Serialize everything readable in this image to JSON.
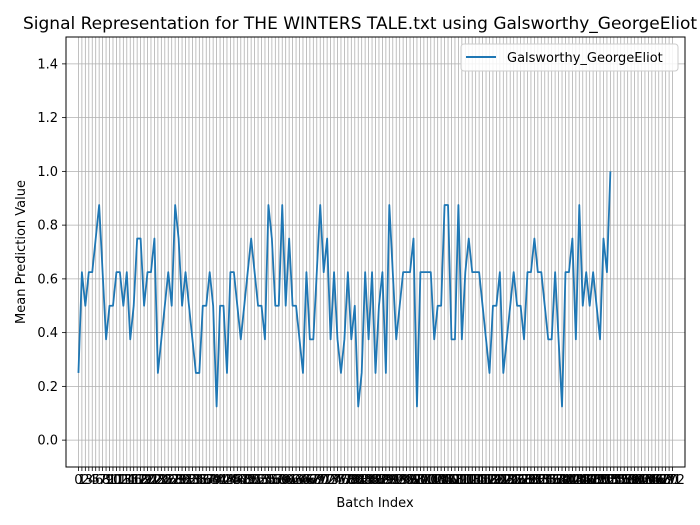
{
  "chart_data": {
    "type": "line",
    "title": "Signal Representation for THE WINTERS TALE.txt using Galsworthy_GeorgeEliot",
    "xlabel": "Batch Index",
    "ylabel": "Mean Prediction Value",
    "ylim": [
      -0.1,
      1.5
    ],
    "yticks": [
      "0.0",
      "0.2",
      "0.4",
      "0.6",
      "0.8",
      "1.0",
      "1.2",
      "1.4"
    ],
    "xlim": [
      -3.6,
      175.6
    ],
    "x_tick_first": 0,
    "x_tick_last": 172,
    "grid": true,
    "legend_position": "upper right",
    "color": "#1f77b4",
    "series": [
      {
        "name": "Galsworthy_GeorgeEliot",
        "values": [
          0.25,
          0.625,
          0.5,
          0.625,
          0.625,
          0.75,
          0.875,
          0.625,
          0.375,
          0.5,
          0.5,
          0.625,
          0.625,
          0.5,
          0.625,
          0.375,
          0.5,
          0.75,
          0.75,
          0.5,
          0.625,
          0.625,
          0.75,
          0.25,
          0.375,
          0.5,
          0.625,
          0.5,
          0.875,
          0.75,
          0.5,
          0.625,
          0.5,
          0.375,
          0.25,
          0.25,
          0.5,
          0.5,
          0.625,
          0.5,
          0.125,
          0.5,
          0.5,
          0.25,
          0.625,
          0.625,
          0.5,
          0.375,
          0.5,
          0.625,
          0.75,
          0.625,
          0.5,
          0.5,
          0.375,
          0.875,
          0.75,
          0.5,
          0.5,
          0.875,
          0.5,
          0.75,
          0.5,
          0.5,
          0.375,
          0.25,
          0.625,
          0.375,
          0.375,
          0.625,
          0.875,
          0.625,
          0.75,
          0.375,
          0.625,
          0.375,
          0.25,
          0.375,
          0.625,
          0.375,
          0.5,
          0.125,
          0.25,
          0.625,
          0.375,
          0.625,
          0.25,
          0.5,
          0.625,
          0.25,
          0.875,
          0.625,
          0.375,
          0.5,
          0.625,
          0.625,
          0.625,
          0.75,
          0.125,
          0.625,
          0.625,
          0.625,
          0.625,
          0.375,
          0.5,
          0.5,
          0.875,
          0.875,
          0.375,
          0.375,
          0.875,
          0.375,
          0.625,
          0.75,
          0.625,
          0.625,
          0.625,
          0.5,
          0.375,
          0.25,
          0.5,
          0.5,
          0.625,
          0.25,
          0.375,
          0.5,
          0.625,
          0.5,
          0.5,
          0.375,
          0.625,
          0.625,
          0.75,
          0.625,
          0.625,
          0.5,
          0.375,
          0.375,
          0.625,
          0.375,
          0.125,
          0.625,
          0.625,
          0.75,
          0.375,
          0.875,
          0.5,
          0.625,
          0.5,
          0.625,
          0.5,
          0.375,
          0.75,
          0.625,
          1.0
        ]
      }
    ]
  }
}
